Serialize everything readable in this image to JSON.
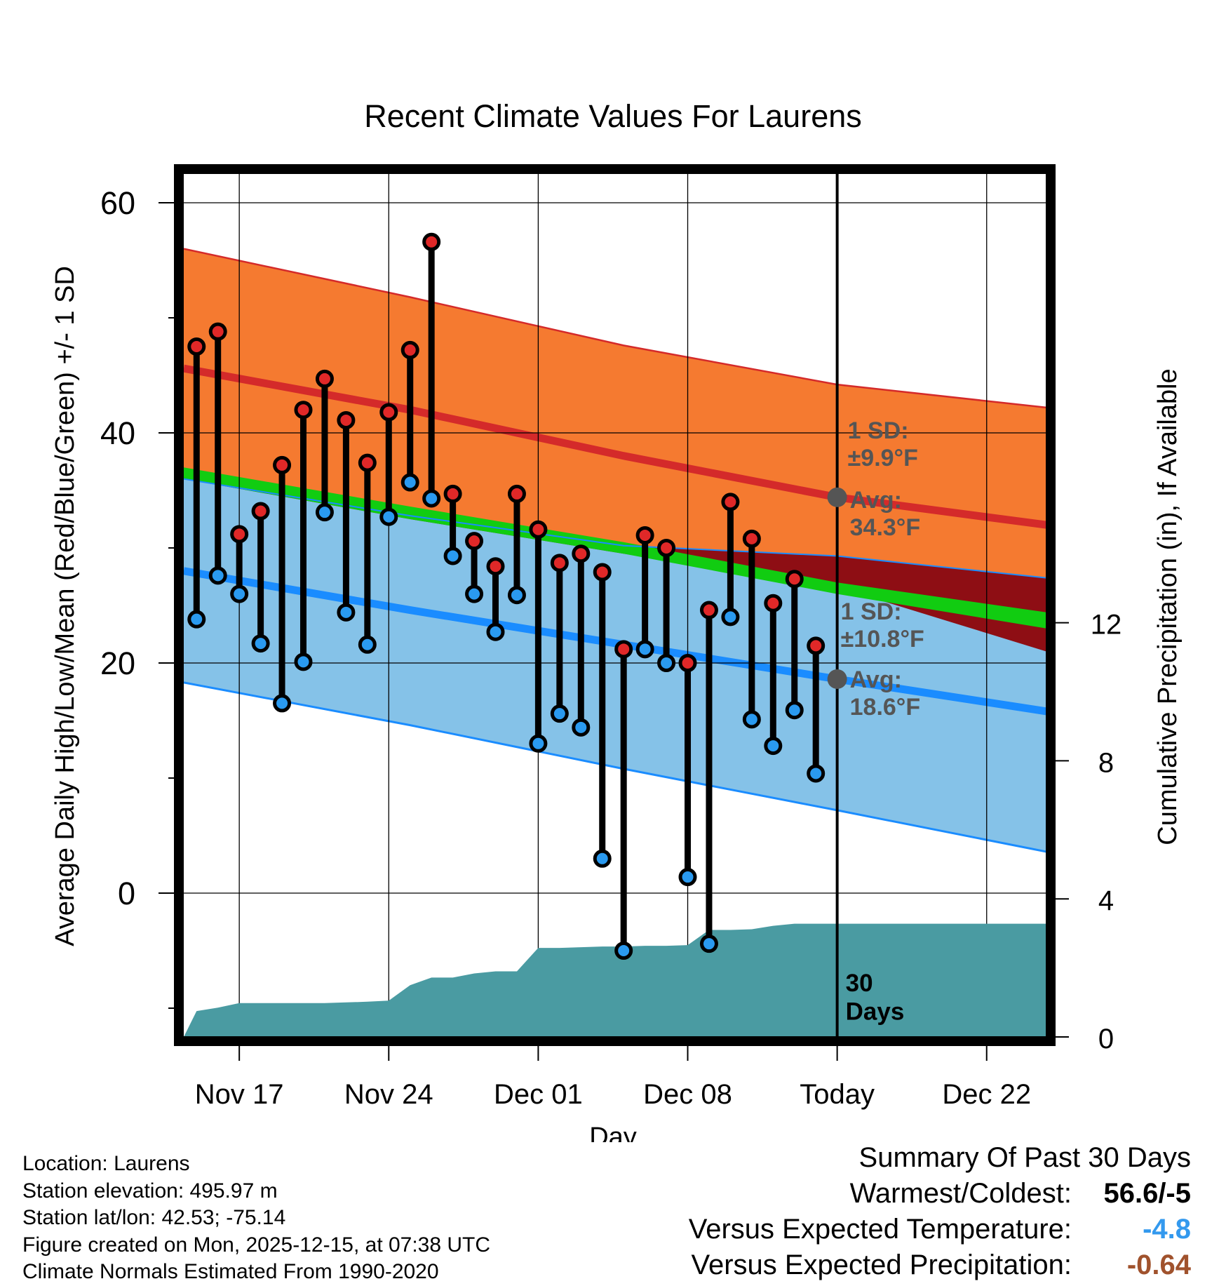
{
  "chart_data": {
    "type": "line",
    "title": "Recent Climate Values For Laurens",
    "xlabel": "Day",
    "ylabel": "Average Daily High/Low/Mean (Red/Blue/Green) +/- 1 SD",
    "y2label": "Cumulative Precipitation (in), If Available",
    "x_tick_labels": [
      "Nov 17",
      "Nov 24",
      "Dec 01",
      "Dec 08",
      "Today",
      "Dec 22"
    ],
    "x_tick_days": [
      16,
      23,
      30,
      37,
      44,
      51
    ],
    "xlim": [
      13.4,
      53.8
    ],
    "ylim": [
      -12.5,
      62.5
    ],
    "y_ticks": [
      0,
      20,
      40,
      60
    ],
    "y_minor_ticks": [
      -10,
      10,
      30,
      50
    ],
    "y2lim": [
      0,
      25
    ],
    "y2_ticks": [
      0,
      4,
      8,
      12
    ],
    "today_day": 44,
    "normals": {
      "x": [
        13.4,
        24,
        34,
        44,
        53.8
      ],
      "high_mean": [
        45.6,
        42.0,
        38.0,
        34.4,
        32.0
      ],
      "high_upper": [
        56.0,
        51.8,
        47.6,
        44.2,
        42.2
      ],
      "high_lower": [
        36.0,
        32.5,
        29.5,
        26.6,
        21.0
      ],
      "mean_upper": [
        37.0,
        33.6,
        30.5,
        27.0,
        24.4
      ],
      "mean_lower": [
        36.0,
        32.5,
        29.5,
        26.0,
        23.0
      ],
      "low_mean": [
        28.0,
        24.6,
        21.6,
        18.6,
        15.8
      ],
      "low_upper": [
        36.0,
        32.8,
        30.2,
        29.3,
        27.4
      ],
      "low_lower": [
        18.3,
        14.6,
        10.8,
        7.2,
        3.6
      ]
    },
    "observations": [
      {
        "day": 14,
        "high": 47.5,
        "low": 23.8
      },
      {
        "day": 15,
        "high": 48.8,
        "low": 27.6
      },
      {
        "day": 16,
        "high": 31.2,
        "low": 26.0
      },
      {
        "day": 17,
        "high": 33.2,
        "low": 21.7
      },
      {
        "day": 18,
        "high": 37.2,
        "low": 16.5
      },
      {
        "day": 19,
        "high": 42.0,
        "low": 20.1
      },
      {
        "day": 20,
        "high": 44.7,
        "low": 33.1
      },
      {
        "day": 21,
        "high": 41.1,
        "low": 24.4
      },
      {
        "day": 22,
        "high": 37.4,
        "low": 21.6
      },
      {
        "day": 23,
        "high": 41.8,
        "low": 32.7
      },
      {
        "day": 24,
        "high": 47.2,
        "low": 35.7
      },
      {
        "day": 25,
        "high": 56.6,
        "low": 34.3
      },
      {
        "day": 26,
        "high": 34.7,
        "low": 29.3
      },
      {
        "day": 27,
        "high": 30.6,
        "low": 26.0
      },
      {
        "day": 28,
        "high": 28.4,
        "low": 22.7
      },
      {
        "day": 29,
        "high": 34.7,
        "low": 25.9
      },
      {
        "day": 30,
        "high": 31.6,
        "low": 13.0
      },
      {
        "day": 31,
        "high": 28.7,
        "low": 15.6
      },
      {
        "day": 32,
        "high": 29.5,
        "low": 14.4
      },
      {
        "day": 33,
        "high": 27.9,
        "low": 3.0
      },
      {
        "day": 34,
        "high": 21.2,
        "low": -5.0
      },
      {
        "day": 35,
        "high": 31.1,
        "low": 21.2
      },
      {
        "day": 36,
        "high": 30.0,
        "low": 20.0
      },
      {
        "day": 37,
        "high": 20.0,
        "low": 1.4
      },
      {
        "day": 38,
        "high": 24.6,
        "low": -4.4
      },
      {
        "day": 39,
        "high": 34.0,
        "low": 24.0
      },
      {
        "day": 40,
        "high": 30.8,
        "low": 15.1
      },
      {
        "day": 41,
        "high": 25.2,
        "low": 12.8
      },
      {
        "day": 42,
        "high": 27.3,
        "low": 15.9
      },
      {
        "day": 43,
        "high": 21.5,
        "low": 10.4
      }
    ],
    "cumulative_precip": {
      "x": [
        13.4,
        14,
        15,
        16,
        17,
        18,
        19,
        20,
        21,
        22,
        23,
        24,
        25,
        26,
        27,
        28,
        29,
        30,
        31,
        32,
        33,
        34,
        35,
        36,
        37,
        38,
        39,
        40,
        41,
        42,
        43,
        44,
        53.8
      ],
      "y": [
        0.0,
        0.75,
        0.85,
        0.98,
        0.98,
        0.98,
        0.98,
        0.98,
        1.0,
        1.02,
        1.05,
        1.5,
        1.72,
        1.72,
        1.84,
        1.9,
        1.9,
        2.58,
        2.58,
        2.6,
        2.62,
        2.62,
        2.64,
        2.64,
        2.66,
        3.1,
        3.1,
        3.12,
        3.22,
        3.28,
        3.28,
        3.28,
        3.28
      ]
    },
    "annotations": {
      "high_sd": "1 SD:\n±9.9°F",
      "high_avg": "Avg:\n34.3°F",
      "low_sd": "1 SD:\n±10.8°F",
      "low_avg": "Avg:\n18.6°F",
      "window": "30\nDays"
    },
    "colors": {
      "high_band": "#f57a30",
      "high_mean": "#d42a2a",
      "overlap_band": "#8e0e14",
      "mean_band": "#11cc11",
      "low_band": "#85c2e8",
      "low_mean": "#1a8cff",
      "precip": "#4a9ba2",
      "annotation": "#555555"
    }
  },
  "footer": {
    "location": "Location: Laurens",
    "elevation": "Station elevation: 495.97 m",
    "latlon": "Station lat/lon: 42.53; -75.14",
    "created": "Figure created on Mon, 2025-12-15, at 07:38 UTC",
    "normals": "Climate Normals Estimated From 1990-2020"
  },
  "summary": {
    "title": "Summary Of Past 30 Days",
    "warmest_label": "Warmest/Coldest:",
    "warmest_value": "56.6/-5",
    "temp_label": "Versus Expected Temperature:",
    "temp_value": "-4.8",
    "temp_color": "#3399ee",
    "precip_label": "Versus Expected Precipitation:",
    "precip_value": "-0.64",
    "precip_color": "#a0522d"
  }
}
